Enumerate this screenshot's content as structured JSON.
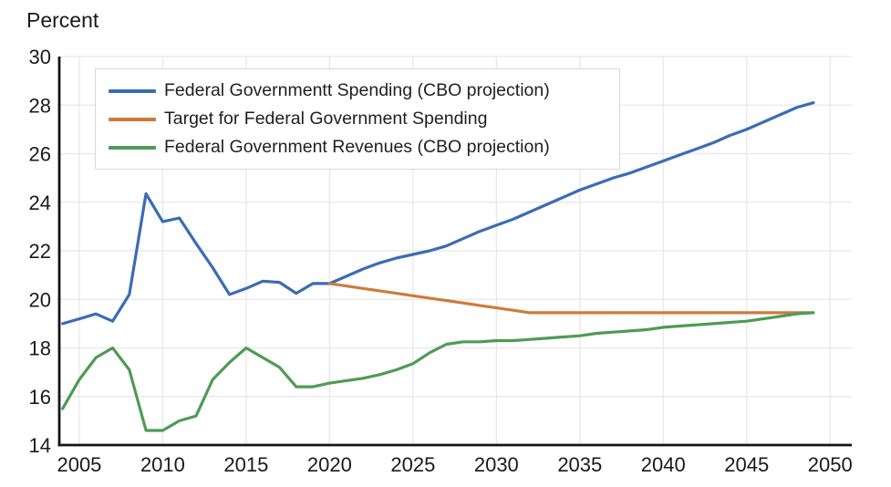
{
  "colors": {
    "background": "#ffffff",
    "axis": "#141414",
    "grid": "#e8e8e8",
    "text": "#1a1a1a",
    "legend_border": "#d9d9d9",
    "spending_blue": "#3b6cb4",
    "target_orange": "#cf7a3a",
    "revenues_green": "#4e9b55"
  },
  "chart_data": {
    "type": "line",
    "title": "Percent",
    "xlabel": "",
    "ylabel": "Percent",
    "grid": true,
    "legend_position": "top-left",
    "xlim": [
      2003.8,
      2051.3
    ],
    "ylim": [
      14,
      30
    ],
    "x_ticks": [
      2005,
      2010,
      2015,
      2020,
      2025,
      2030,
      2035,
      2040,
      2045,
      2050
    ],
    "y_ticks": [
      14,
      16,
      18,
      20,
      22,
      24,
      26,
      28,
      30
    ],
    "x": [
      2004,
      2005,
      2006,
      2007,
      2008,
      2009,
      2010,
      2011,
      2012,
      2013,
      2014,
      2015,
      2016,
      2017,
      2018,
      2019,
      2020,
      2021,
      2022,
      2023,
      2024,
      2025,
      2026,
      2027,
      2028,
      2029,
      2030,
      2031,
      2032,
      2033,
      2034,
      2035,
      2036,
      2037,
      2038,
      2039,
      2040,
      2041,
      2042,
      2043,
      2044,
      2045,
      2046,
      2047,
      2048,
      2049
    ],
    "series": [
      {
        "name": "Federal Governmentt Spending (CBO projection)",
        "color": "#3b6cb4",
        "values": [
          19.0,
          19.2,
          19.4,
          19.1,
          20.2,
          24.35,
          23.2,
          23.35,
          22.3,
          21.3,
          20.2,
          20.45,
          20.75,
          20.7,
          20.25,
          20.65,
          20.65,
          20.95,
          21.25,
          21.5,
          21.7,
          21.85,
          22.0,
          22.2,
          22.5,
          22.8,
          23.05,
          23.3,
          23.6,
          23.9,
          24.2,
          24.5,
          24.75,
          25.0,
          25.2,
          25.45,
          25.7,
          25.95,
          26.2,
          26.45,
          26.75,
          27.0,
          27.3,
          27.6,
          27.9,
          28.1
        ]
      },
      {
        "name": "Target for Federal Government Spending",
        "color": "#cf7a3a",
        "values": [
          null,
          null,
          null,
          null,
          null,
          null,
          null,
          null,
          null,
          null,
          null,
          null,
          null,
          null,
          null,
          null,
          20.65,
          20.55,
          20.45,
          20.35,
          20.25,
          20.15,
          20.05,
          19.95,
          19.85,
          19.75,
          19.65,
          19.55,
          19.45,
          19.45,
          19.45,
          19.45,
          19.45,
          19.45,
          19.45,
          19.45,
          19.45,
          19.45,
          19.45,
          19.45,
          19.45,
          19.45,
          19.45,
          19.45,
          19.45,
          19.45
        ]
      },
      {
        "name": "Federal Government Revenues (CBO projection)",
        "color": "#4e9b55",
        "values": [
          15.5,
          16.7,
          17.6,
          18.0,
          17.1,
          14.6,
          14.6,
          15.0,
          15.2,
          16.7,
          17.4,
          18.0,
          17.6,
          17.2,
          16.4,
          16.4,
          16.55,
          16.65,
          16.75,
          16.9,
          17.1,
          17.35,
          17.8,
          18.15,
          18.25,
          18.25,
          18.3,
          18.3,
          18.35,
          18.4,
          18.45,
          18.5,
          18.6,
          18.65,
          18.7,
          18.75,
          18.85,
          18.9,
          18.95,
          19.0,
          19.05,
          19.1,
          19.2,
          19.3,
          19.4,
          19.45
        ]
      }
    ]
  }
}
